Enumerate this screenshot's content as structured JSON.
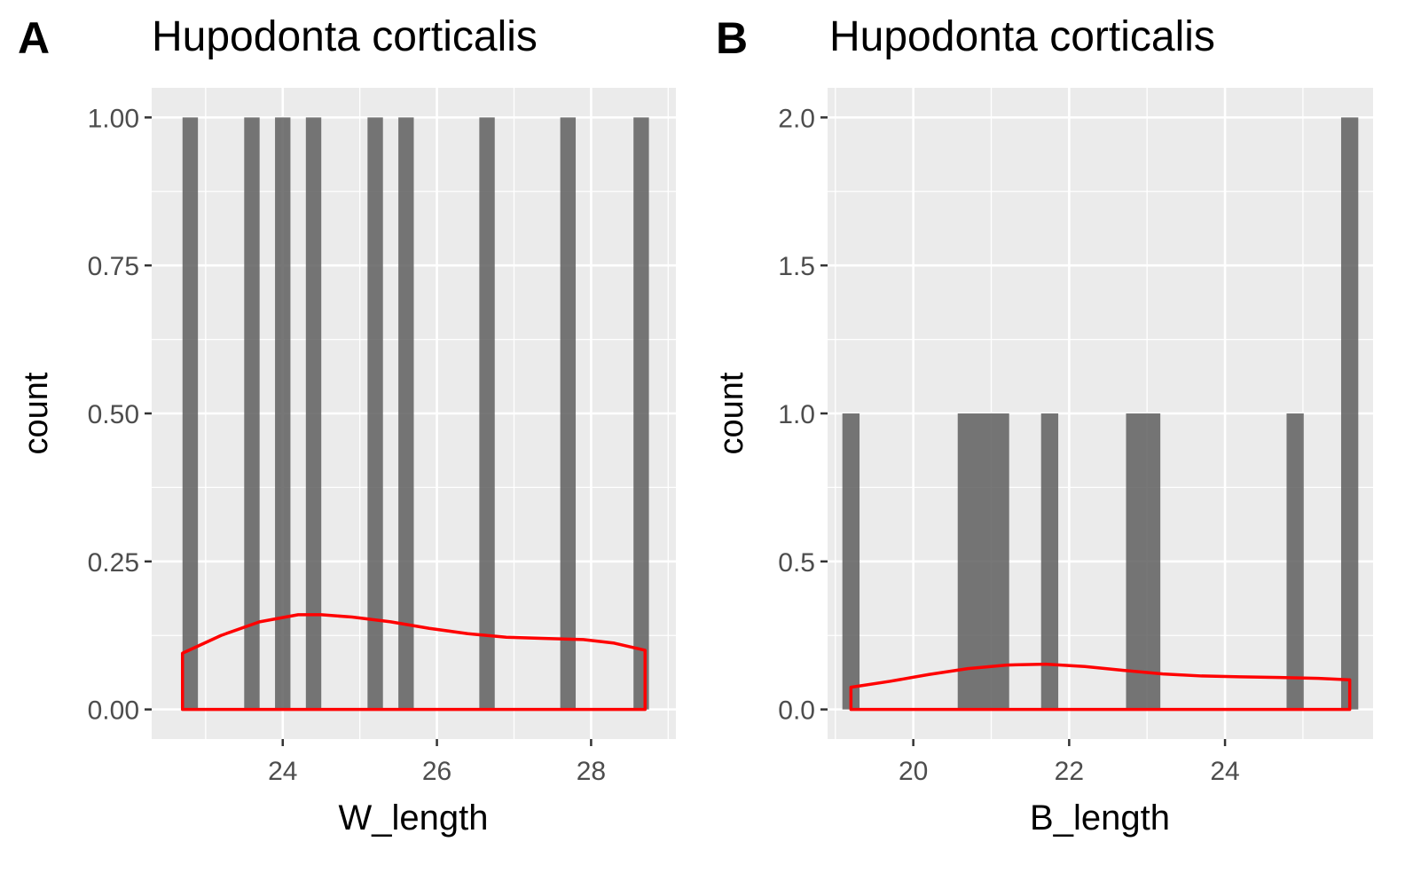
{
  "chart_data": [
    {
      "panel": "A",
      "type": "bar",
      "title": "Hupodonta corticalis",
      "xlabel": "W_length",
      "ylabel": "count",
      "xlim": [
        22.3,
        29.1
      ],
      "ylim": [
        -0.05,
        1.05
      ],
      "xticks": [
        24,
        26,
        28
      ],
      "xtick_labels": [
        "24",
        "26",
        "28"
      ],
      "yticks": [
        0,
        0.25,
        0.5,
        0.75,
        1.0
      ],
      "ytick_labels": [
        "0.00",
        "0.25",
        "0.50",
        "0.75",
        "1.00"
      ],
      "bin_width": 0.2,
      "bars": [
        {
          "x": 22.8,
          "value": 1
        },
        {
          "x": 23.6,
          "value": 1
        },
        {
          "x": 24.0,
          "value": 1
        },
        {
          "x": 24.4,
          "value": 1
        },
        {
          "x": 25.2,
          "value": 1
        },
        {
          "x": 25.6,
          "value": 1
        },
        {
          "x": 26.65,
          "value": 1
        },
        {
          "x": 27.7,
          "value": 1
        },
        {
          "x": 28.65,
          "value": 1
        }
      ],
      "density_curve": {
        "x": [
          22.7,
          23.2,
          23.7,
          24.2,
          24.5,
          24.9,
          25.4,
          25.9,
          26.4,
          26.9,
          27.4,
          27.9,
          28.3,
          28.7
        ],
        "y": [
          0.095,
          0.125,
          0.148,
          0.16,
          0.16,
          0.156,
          0.148,
          0.137,
          0.128,
          0.122,
          0.12,
          0.118,
          0.112,
          0.1
        ]
      },
      "grid": true,
      "colors": {
        "bar": "#595959",
        "density": "#ff0000",
        "panel_bg": "#ebebeb",
        "grid": "#ffffff"
      }
    },
    {
      "panel": "B",
      "type": "bar",
      "title": "Hupodonta corticalis",
      "xlabel": "B_length",
      "ylabel": "count",
      "xlim": [
        18.9,
        25.9
      ],
      "ylim": [
        -0.1,
        2.1
      ],
      "xticks": [
        20,
        22,
        24
      ],
      "xtick_labels": [
        "20",
        "22",
        "24"
      ],
      "yticks": [
        0,
        0.5,
        1.0,
        1.5,
        2.0
      ],
      "ytick_labels": [
        "0.0",
        "0.5",
        "1.0",
        "1.5",
        "2.0"
      ],
      "bin_width": 0.22,
      "bars": [
        {
          "x": 19.2,
          "value": 1
        },
        {
          "x": 20.9,
          "value": 1,
          "width": 0.66
        },
        {
          "x": 21.75,
          "value": 1
        },
        {
          "x": 22.95,
          "value": 1,
          "width": 0.44
        },
        {
          "x": 24.9,
          "value": 1
        },
        {
          "x": 25.6,
          "value": 2
        }
      ],
      "density_curve": {
        "x": [
          19.2,
          19.7,
          20.2,
          20.7,
          21.2,
          21.7,
          22.2,
          22.7,
          23.2,
          23.7,
          24.2,
          24.7,
          25.2,
          25.6
        ],
        "y": [
          0.075,
          0.095,
          0.118,
          0.138,
          0.15,
          0.153,
          0.145,
          0.132,
          0.12,
          0.113,
          0.11,
          0.108,
          0.105,
          0.1
        ]
      },
      "grid": true,
      "colors": {
        "bar": "#595959",
        "density": "#ff0000",
        "panel_bg": "#ebebeb",
        "grid": "#ffffff"
      }
    }
  ]
}
